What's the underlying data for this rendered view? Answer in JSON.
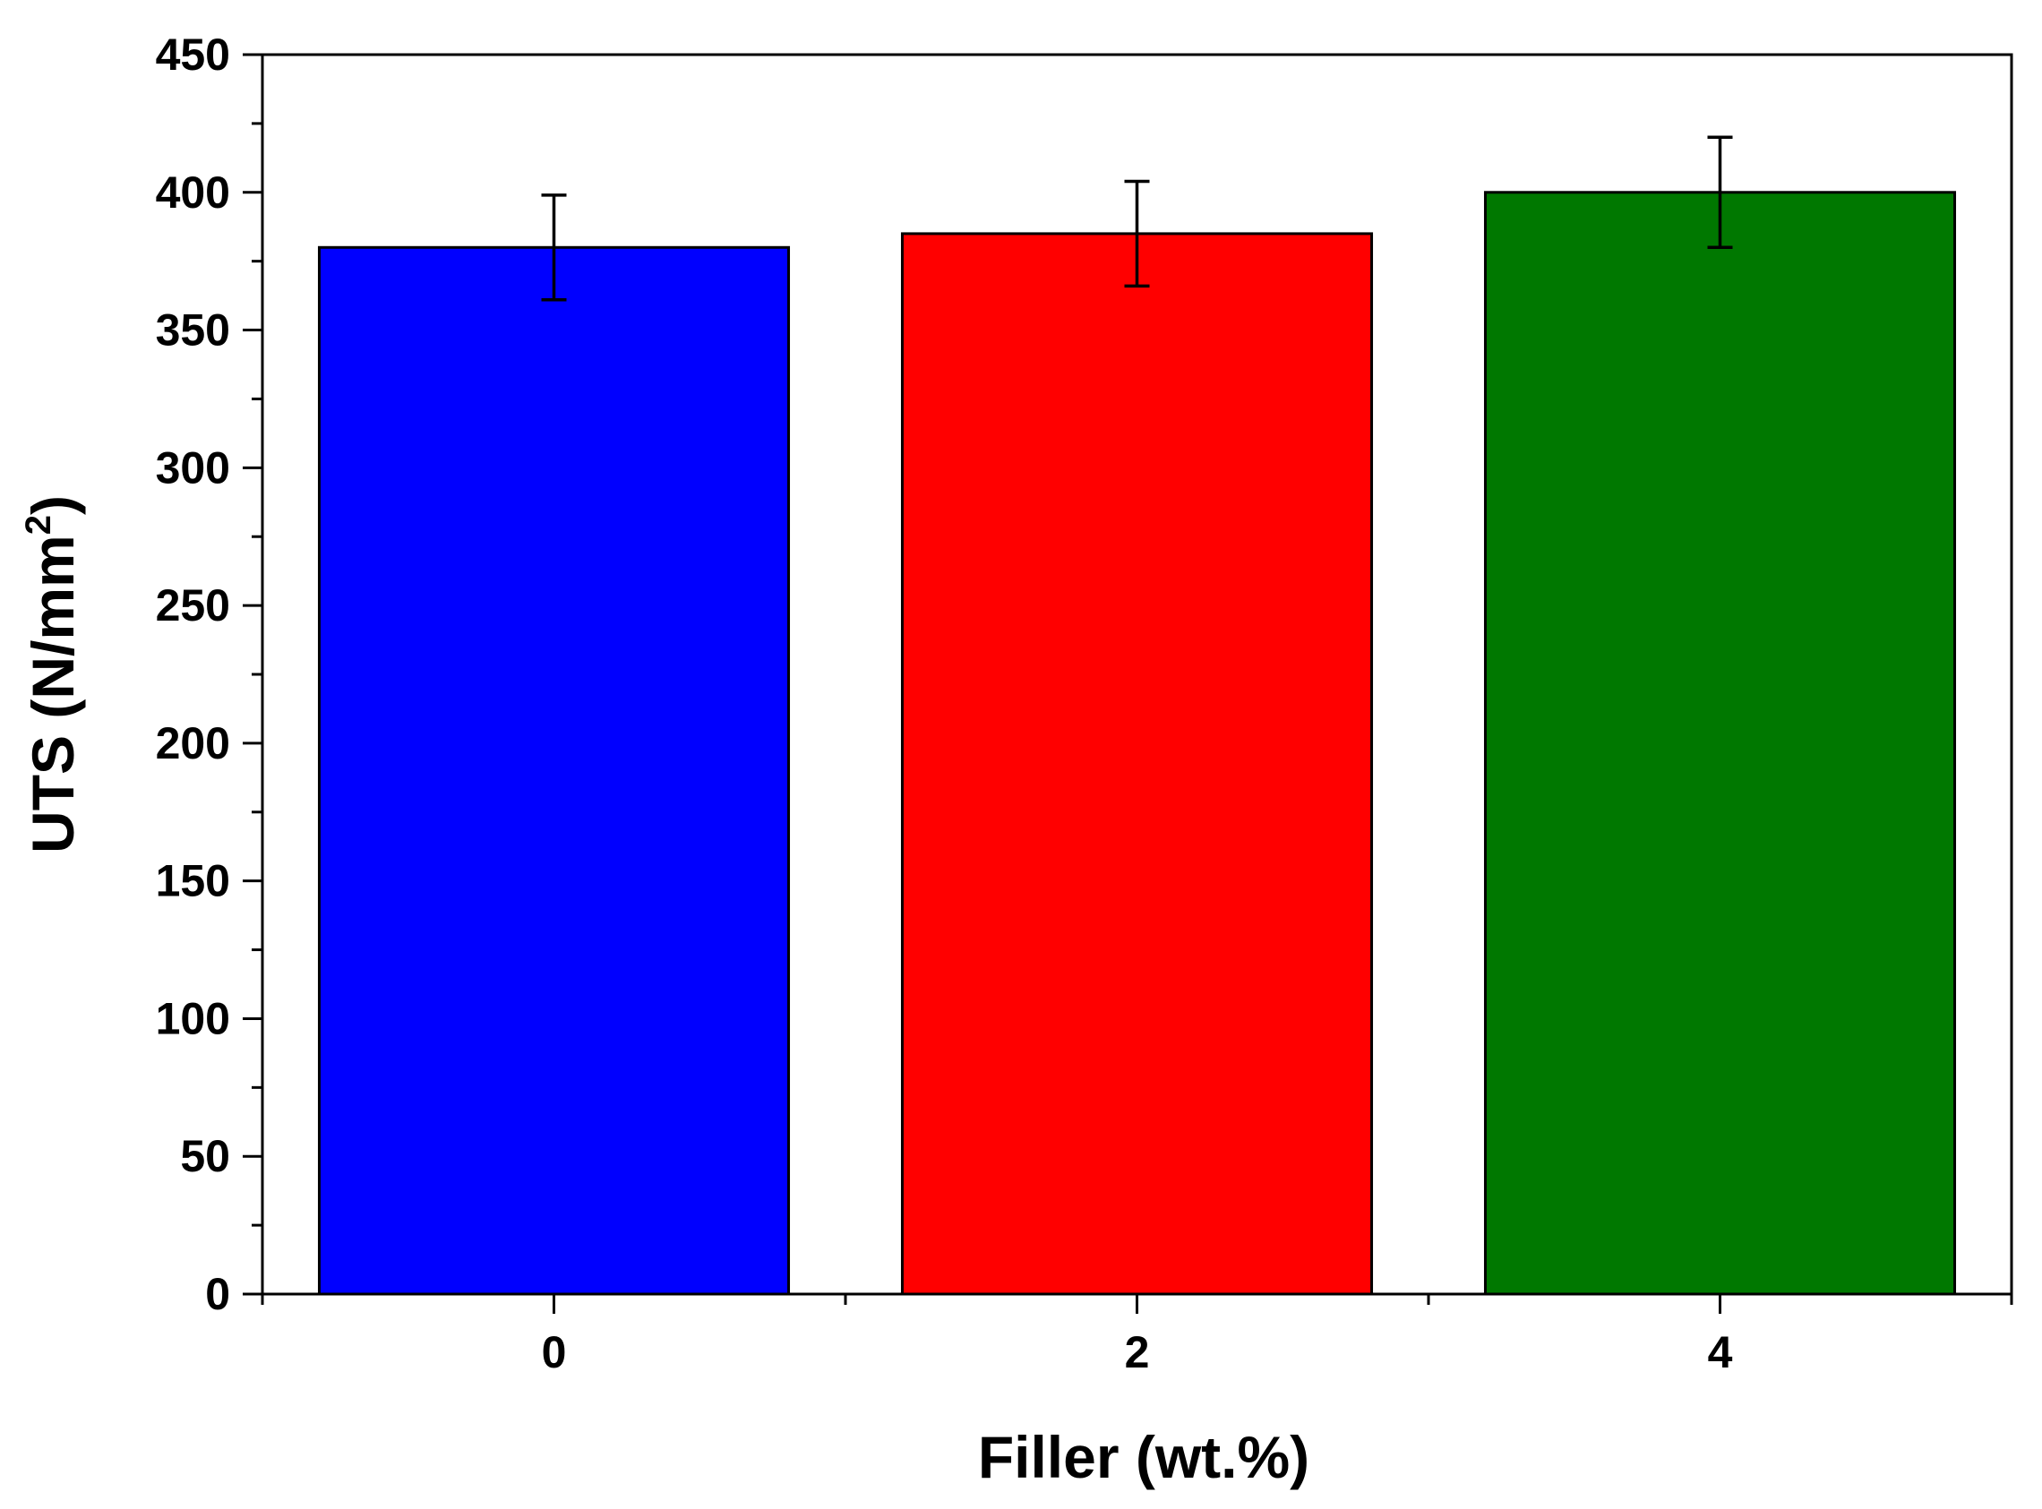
{
  "chart_data": {
    "type": "bar",
    "title": "",
    "xlabel": "Filler (wt.%)",
    "ylabel_main": "UTS (N/mm",
    "ylabel_sup": "2",
    "ylabel_close": ")",
    "categories": [
      "0",
      "2",
      "4"
    ],
    "values": [
      380,
      385,
      400
    ],
    "errors": [
      19,
      19,
      20
    ],
    "colors": [
      "#0000ff",
      "#ff0000",
      "#007800"
    ],
    "ylim": [
      0,
      450
    ],
    "yticks": [
      0,
      50,
      100,
      150,
      200,
      250,
      300,
      350,
      400,
      450
    ],
    "yticks_labels": [
      "0",
      "50",
      "100",
      "150",
      "200",
      "250",
      "300",
      "350",
      "400",
      "450"
    ],
    "grid": false,
    "legend": "none"
  }
}
